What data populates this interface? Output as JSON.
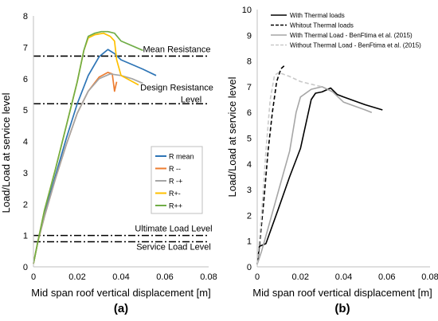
{
  "chart_data": [
    {
      "type": "line",
      "panel_label": "(a)",
      "xlabel": "Mid span roof vertical displacement [m]",
      "ylabel": "Load/Load at service level",
      "xlim": [
        0,
        0.08
      ],
      "ylim": [
        0,
        8
      ],
      "x_ticks": [
        "0",
        "0.02",
        "0.04",
        "0.06",
        "0.08"
      ],
      "y_ticks": [
        "0",
        "1",
        "2",
        "3",
        "4",
        "5",
        "6",
        "7",
        "8"
      ],
      "grid": false,
      "legend_position": "right-center",
      "series": [
        {
          "name": "R mean",
          "color": "#2e75b6",
          "points": [
            [
              0,
              0.1
            ],
            [
              0.002,
              0.8
            ],
            [
              0.005,
              1.7
            ],
            [
              0.01,
              2.9
            ],
            [
              0.015,
              4.1
            ],
            [
              0.02,
              5.2
            ],
            [
              0.025,
              6.1
            ],
            [
              0.03,
              6.7
            ],
            [
              0.034,
              6.93
            ],
            [
              0.037,
              6.8
            ],
            [
              0.04,
              6.6
            ],
            [
              0.045,
              6.45
            ],
            [
              0.05,
              6.3
            ],
            [
              0.056,
              6.1
            ]
          ]
        },
        {
          "name": "R --",
          "color": "#ed7d31",
          "points": [
            [
              0,
              0.1
            ],
            [
              0.002,
              0.8
            ],
            [
              0.005,
              1.6
            ],
            [
              0.01,
              2.8
            ],
            [
              0.015,
              3.9
            ],
            [
              0.02,
              4.9
            ],
            [
              0.025,
              5.6
            ],
            [
              0.03,
              6.05
            ],
            [
              0.034,
              6.2
            ],
            [
              0.036,
              6.15
            ],
            [
              0.037,
              5.6
            ],
            [
              0.038,
              5.9
            ]
          ]
        },
        {
          "name": "R -+",
          "color": "#a5a5a5",
          "points": [
            [
              0,
              0.1
            ],
            [
              0.002,
              0.8
            ],
            [
              0.005,
              1.6
            ],
            [
              0.01,
              2.8
            ],
            [
              0.015,
              3.9
            ],
            [
              0.02,
              4.9
            ],
            [
              0.025,
              5.6
            ],
            [
              0.03,
              6.0
            ],
            [
              0.035,
              6.15
            ],
            [
              0.04,
              6.1
            ],
            [
              0.045,
              6.0
            ],
            [
              0.05,
              5.85
            ]
          ]
        },
        {
          "name": "R+-",
          "color": "#ffc000",
          "points": [
            [
              0,
              0.1
            ],
            [
              0.002,
              0.8
            ],
            [
              0.005,
              1.8
            ],
            [
              0.01,
              3.1
            ],
            [
              0.015,
              4.5
            ],
            [
              0.02,
              5.9
            ],
            [
              0.023,
              6.9
            ],
            [
              0.025,
              7.3
            ],
            [
              0.028,
              7.4
            ],
            [
              0.032,
              7.45
            ],
            [
              0.035,
              7.35
            ],
            [
              0.037,
              7.2
            ],
            [
              0.038,
              6.6
            ],
            [
              0.04,
              6.1
            ],
            [
              0.048,
              5.8
            ]
          ]
        },
        {
          "name": "R++",
          "color": "#70ad47",
          "points": [
            [
              0,
              0.1
            ],
            [
              0.002,
              0.8
            ],
            [
              0.005,
              1.8
            ],
            [
              0.01,
              3.1
            ],
            [
              0.015,
              4.5
            ],
            [
              0.02,
              5.9
            ],
            [
              0.023,
              6.9
            ],
            [
              0.025,
              7.35
            ],
            [
              0.028,
              7.45
            ],
            [
              0.031,
              7.5
            ],
            [
              0.034,
              7.5
            ],
            [
              0.037,
              7.45
            ],
            [
              0.04,
              7.2
            ],
            [
              0.05,
              6.9
            ]
          ]
        }
      ],
      "reference_lines": [
        {
          "label": "Mean Resistance",
          "y": 6.72
        },
        {
          "label": "Design Resistance Level",
          "y": 5.2
        },
        {
          "label": "Ultimate Load Level",
          "y": 1.0
        },
        {
          "label": "Service Load Level",
          "y": 0.8
        }
      ]
    },
    {
      "type": "line",
      "panel_label": "(b)",
      "xlabel": "Mid span roof vertical displacement [m]",
      "ylabel": "Load/Load at service level",
      "xlim": [
        0,
        0.08
      ],
      "ylim": [
        0,
        10
      ],
      "x_ticks": [
        "0",
        "0.02",
        "0.04",
        "0.06",
        "0.08"
      ],
      "y_ticks": [
        "0",
        "1",
        "2",
        "3",
        "4",
        "5",
        "6",
        "7",
        "8",
        "9",
        "10"
      ],
      "grid": false,
      "legend_position": "top-left",
      "series": [
        {
          "name": "With Thermal loads",
          "color": "#000000",
          "style": "solid",
          "points": [
            [
              0,
              0.1
            ],
            [
              0.001,
              0.8
            ],
            [
              0.004,
              0.9
            ],
            [
              0.01,
              2.3
            ],
            [
              0.015,
              3.5
            ],
            [
              0.02,
              4.6
            ],
            [
              0.025,
              6.5
            ],
            [
              0.027,
              6.75
            ],
            [
              0.03,
              6.8
            ],
            [
              0.034,
              6.95
            ],
            [
              0.037,
              6.7
            ],
            [
              0.04,
              6.6
            ],
            [
              0.05,
              6.3
            ],
            [
              0.058,
              6.1
            ]
          ]
        },
        {
          "name": "Whitout Thermal loads",
          "color": "#000000",
          "style": "dashed",
          "points": [
            [
              0,
              0.1
            ],
            [
              0.001,
              0.8
            ],
            [
              0.003,
              2.5
            ],
            [
              0.005,
              4.5
            ],
            [
              0.007,
              6.0
            ],
            [
              0.009,
              7.2
            ],
            [
              0.011,
              7.7
            ],
            [
              0.013,
              7.85
            ]
          ]
        },
        {
          "name": "With Thermal Load - BenFtima et al. (2015)",
          "color": "#a6a6a6",
          "style": "solid",
          "points": [
            [
              0,
              0.1
            ],
            [
              0.002,
              0.6
            ],
            [
              0.005,
              1.5
            ],
            [
              0.01,
              3.0
            ],
            [
              0.015,
              4.5
            ],
            [
              0.018,
              6.0
            ],
            [
              0.02,
              6.6
            ],
            [
              0.025,
              6.9
            ],
            [
              0.03,
              7.0
            ],
            [
              0.035,
              6.8
            ],
            [
              0.04,
              6.4
            ],
            [
              0.05,
              6.1
            ],
            [
              0.053,
              6.0
            ]
          ]
        },
        {
          "name": "Without Thermal Load - BenFtima et al. (2015)",
          "color": "#c9c9c9",
          "style": "dashed",
          "points": [
            [
              0,
              0.1
            ],
            [
              0.002,
              2.0
            ],
            [
              0.004,
              4.5
            ],
            [
              0.006,
              6.5
            ],
            [
              0.008,
              7.45
            ],
            [
              0.01,
              7.55
            ],
            [
              0.015,
              7.4
            ],
            [
              0.02,
              7.2
            ],
            [
              0.025,
              7.1
            ],
            [
              0.03,
              7.0
            ]
          ]
        }
      ]
    }
  ]
}
